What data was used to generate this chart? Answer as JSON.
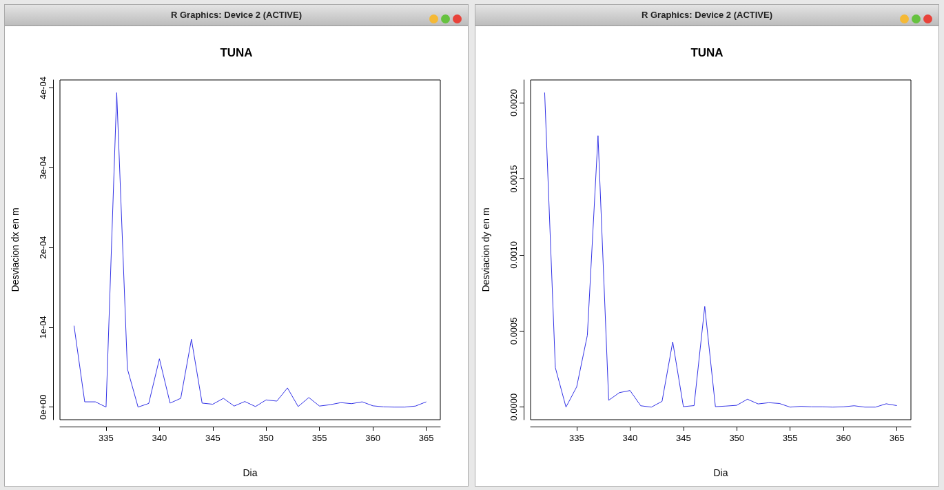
{
  "chart_data": [
    {
      "type": "line",
      "title": "TUNA",
      "xlabel": "Dia",
      "ylabel": "Desviacion dx en m",
      "annotations": [
        "R Graphics: Device 2 (ACTIVE)"
      ],
      "marker": "none",
      "line_style": "solid",
      "x": [
        332,
        333,
        334,
        335,
        336,
        337,
        338,
        339,
        340,
        341,
        342,
        343,
        344,
        345,
        346,
        347,
        348,
        349,
        350,
        351,
        352,
        353,
        354,
        355,
        356,
        357,
        358,
        359,
        360,
        361,
        362,
        363,
        364,
        365
      ],
      "series": [
        {
          "color": "#3333e6",
          "values": [
            0.000102,
            6.6e-06,
            6.6e-06,
            0,
            0.000394,
            4.8e-05,
            0,
            4.6e-06,
            6.05e-05,
            5e-06,
            1.1e-05,
            8.5e-05,
            5e-06,
            3.6e-06,
            1.1e-05,
            1.3e-06,
            7e-06,
            7e-07,
            9e-06,
            7.5e-06,
            2.4e-05,
            7e-07,
            1.2e-05,
            1.3e-06,
            3e-06,
            5.6e-06,
            4.3e-06,
            6.6e-06,
            1.6e-06,
            3e-07,
            0,
            0,
            1.3e-06,
            6.6e-06
          ]
        }
      ],
      "xlim": [
        330.68,
        366.32
      ],
      "xticks": [
        335,
        340,
        345,
        350,
        355,
        360,
        365
      ],
      "ylim": [
        -1.58e-05,
        0.00041
      ],
      "yticks": [
        {
          "value": 0,
          "label": "0e+00"
        },
        {
          "value": 0.0001,
          "label": "1e-04"
        },
        {
          "value": 0.0002,
          "label": "2e-04"
        },
        {
          "value": 0.0003,
          "label": "3e-04"
        },
        {
          "value": 0.0004,
          "label": "4e-04"
        }
      ]
    },
    {
      "type": "line",
      "title": "TUNA",
      "xlabel": "Dia",
      "ylabel": "Desviacion dy en m",
      "annotations": [
        "R Graphics: Device 2 (ACTIVE)"
      ],
      "marker": "none",
      "line_style": "solid",
      "x": [
        332,
        333,
        334,
        335,
        336,
        337,
        338,
        339,
        340,
        341,
        342,
        343,
        344,
        345,
        346,
        347,
        348,
        349,
        350,
        351,
        352,
        353,
        354,
        355,
        356,
        357,
        358,
        359,
        360,
        361,
        362,
        363,
        364,
        365
      ],
      "series": [
        {
          "color": "#3333e6",
          "values": [
            0.002067,
            0.00026,
            0,
            0.000133,
            0.000472,
            0.001784,
            4.5e-05,
            9.5e-05,
            0.000109,
            9e-06,
            0,
            3.8e-05,
            0.000429,
            3e-06,
            1e-05,
            0.000662,
            3e-06,
            7e-06,
            1.2e-05,
            5.2e-05,
            2.1e-05,
            2.9e-05,
            2.4e-05,
            0,
            5e-06,
            2e-06,
            2e-06,
            0,
            2e-06,
            9e-06,
            0,
            0,
            2.2e-05,
            1e-05
          ]
        }
      ],
      "xlim": [
        330.68,
        366.32
      ],
      "xticks": [
        335,
        340,
        345,
        350,
        355,
        360,
        365
      ],
      "ylim": [
        -8.27e-05,
        0.00215
      ],
      "yticks": [
        {
          "value": 0,
          "label": "0.0000"
        },
        {
          "value": 0.0005,
          "label": "0.0005"
        },
        {
          "value": 0.001,
          "label": "0.0010"
        },
        {
          "value": 0.0015,
          "label": "0.0015"
        },
        {
          "value": 0.002,
          "label": "0.0020"
        }
      ]
    }
  ]
}
